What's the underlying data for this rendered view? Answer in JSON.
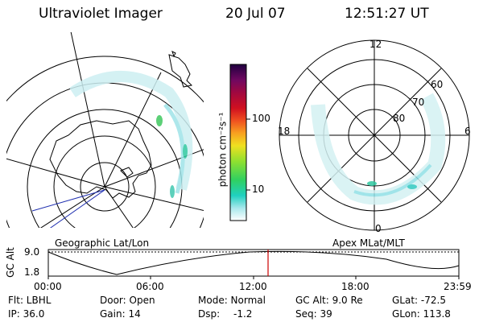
{
  "header": {
    "instrument": "Ultraviolet Imager",
    "date": "20 Jul 07",
    "time": "12:51:27 UT"
  },
  "colorbar": {
    "unit_label": "photon cm⁻²s⁻¹",
    "tick_labels": [
      "100",
      "10"
    ]
  },
  "left_panel": {
    "caption": "Geographic Lat/Lon"
  },
  "right_panel": {
    "caption": "Apex MLat/MLT",
    "mlt_labels": {
      "top": "12",
      "left": "18",
      "right": "6",
      "bottom": "0"
    },
    "lat_labels": [
      "60",
      "70",
      "80"
    ]
  },
  "altitude_plot": {
    "y_label": "GC Alt",
    "y_ticks": [
      "9.0",
      "1.8"
    ],
    "x_ticks": [
      "00:00",
      "06:00",
      "12:00",
      "18:00",
      "23:59"
    ],
    "marker_color": "#cc0000"
  },
  "info": {
    "filter": "Flt: LBHL",
    "door": "Door: Open",
    "mode": "Mode: Normal",
    "gc_alt": "GC Alt: 9.0 Re",
    "glat": "GLat: -72.5",
    "ip": "IP: 36.0",
    "gain": "Gain: 14",
    "dsp_label": "Dsp:",
    "dsp_value": "-1.2",
    "seq": "Seq: 39",
    "glon": "GLon: 113.8"
  }
}
